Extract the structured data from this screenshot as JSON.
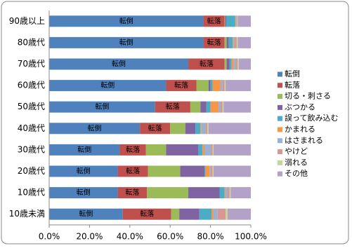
{
  "chart_data": {
    "type": "stacked_bar_horizontal",
    "categories": [
      "90歳以上",
      "80歳代",
      "70歳代",
      "60歳代",
      "50歳代",
      "40歳代",
      "30歳代",
      "20歳代",
      "10歳代",
      "10歳未満"
    ],
    "series": [
      {
        "name": "転倒",
        "color": "#4f81bd",
        "values": [
          76.5,
          76.5,
          69,
          58,
          52.5,
          45,
          35,
          34,
          34,
          36.5
        ]
      },
      {
        "name": "転落",
        "color": "#c0504d",
        "values": [
          10.5,
          10.5,
          18,
          15,
          17.5,
          15,
          13,
          15,
          14.5,
          24
        ]
      },
      {
        "name": "切る・刺さる",
        "color": "#9bbb59",
        "values": [
          0.3,
          1,
          1,
          6,
          5,
          7.5,
          10,
          16,
          20.5,
          4
        ]
      },
      {
        "name": "ぶつかる",
        "color": "#8064a2",
        "values": [
          0.5,
          1,
          1.5,
          1,
          3,
          5,
          16,
          12,
          15.5,
          10
        ]
      },
      {
        "name": "誤って飲み込む",
        "color": "#4bacc6",
        "values": [
          4.5,
          2,
          1,
          1,
          2,
          2.5,
          2,
          0.5,
          2.5,
          6
        ]
      },
      {
        "name": "かまれる",
        "color": "#f79646",
        "values": [
          0.3,
          0.5,
          1,
          4,
          4,
          0.5,
          1,
          2,
          0.5,
          1
        ]
      },
      {
        "name": "はさまれる",
        "color": "#95b3d7",
        "values": [
          0.3,
          0.5,
          1,
          1,
          1,
          2,
          3,
          0.5,
          1,
          2
        ]
      },
      {
        "name": "やけど",
        "color": "#d99694",
        "values": [
          0.3,
          1,
          1,
          1,
          1,
          1,
          1,
          1,
          1,
          4
        ]
      },
      {
        "name": "溺れる",
        "color": "#c3d69b",
        "values": [
          0.3,
          0.5,
          0.5,
          0.5,
          0.5,
          0.5,
          0.5,
          0.5,
          0.5,
          1
        ]
      },
      {
        "name": "その他",
        "color": "#b3a2c7",
        "values": [
          6.5,
          6.5,
          6,
          12.5,
          13.5,
          21,
          18.5,
          18.5,
          10,
          11.5
        ]
      }
    ],
    "xlim": [
      0,
      100
    ],
    "xticks": [
      {
        "value": 0,
        "label": "0.0%"
      },
      {
        "value": 20,
        "label": "20.0%"
      },
      {
        "value": 40,
        "label": "40.0%"
      },
      {
        "value": 60,
        "label": "60.0%"
      },
      {
        "value": 80,
        "label": "80.0%"
      },
      {
        "value": 100,
        "label": "100.0%"
      }
    ],
    "grid": false,
    "legend": "right"
  }
}
